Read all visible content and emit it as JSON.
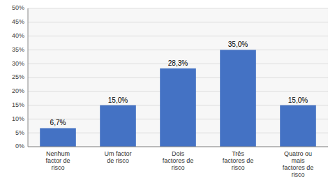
{
  "chart_data": {
    "type": "bar",
    "categories": [
      "Nenhum\nfactor de\nrisco",
      "Um factor\nde risco",
      "Dois\nfactores de\nrisco",
      "Três\nfactores de\nrisco",
      "Quatro ou\nmais\nfactores de\nrisco"
    ],
    "values": [
      6.7,
      15.0,
      28.3,
      35.0,
      15.0
    ],
    "value_labels": [
      "6,7%",
      "15,0%",
      "28,3%",
      "35,0%",
      "15,0%"
    ],
    "data_labels": true,
    "color": "#4472C4",
    "ylim": [
      0,
      50
    ],
    "yticks": [
      {
        "value": 0,
        "label": "0%"
      },
      {
        "value": 5,
        "label": "5%"
      },
      {
        "value": 10,
        "label": "10%"
      },
      {
        "value": 15,
        "label": "15%"
      },
      {
        "value": 20,
        "label": "20%"
      },
      {
        "value": 25,
        "label": "25%"
      },
      {
        "value": 30,
        "label": "30%"
      },
      {
        "value": 35,
        "label": "35%"
      },
      {
        "value": 40,
        "label": "40%"
      },
      {
        "value": 45,
        "label": "45%"
      },
      {
        "value": 50,
        "label": "50%"
      }
    ],
    "grid": true
  }
}
